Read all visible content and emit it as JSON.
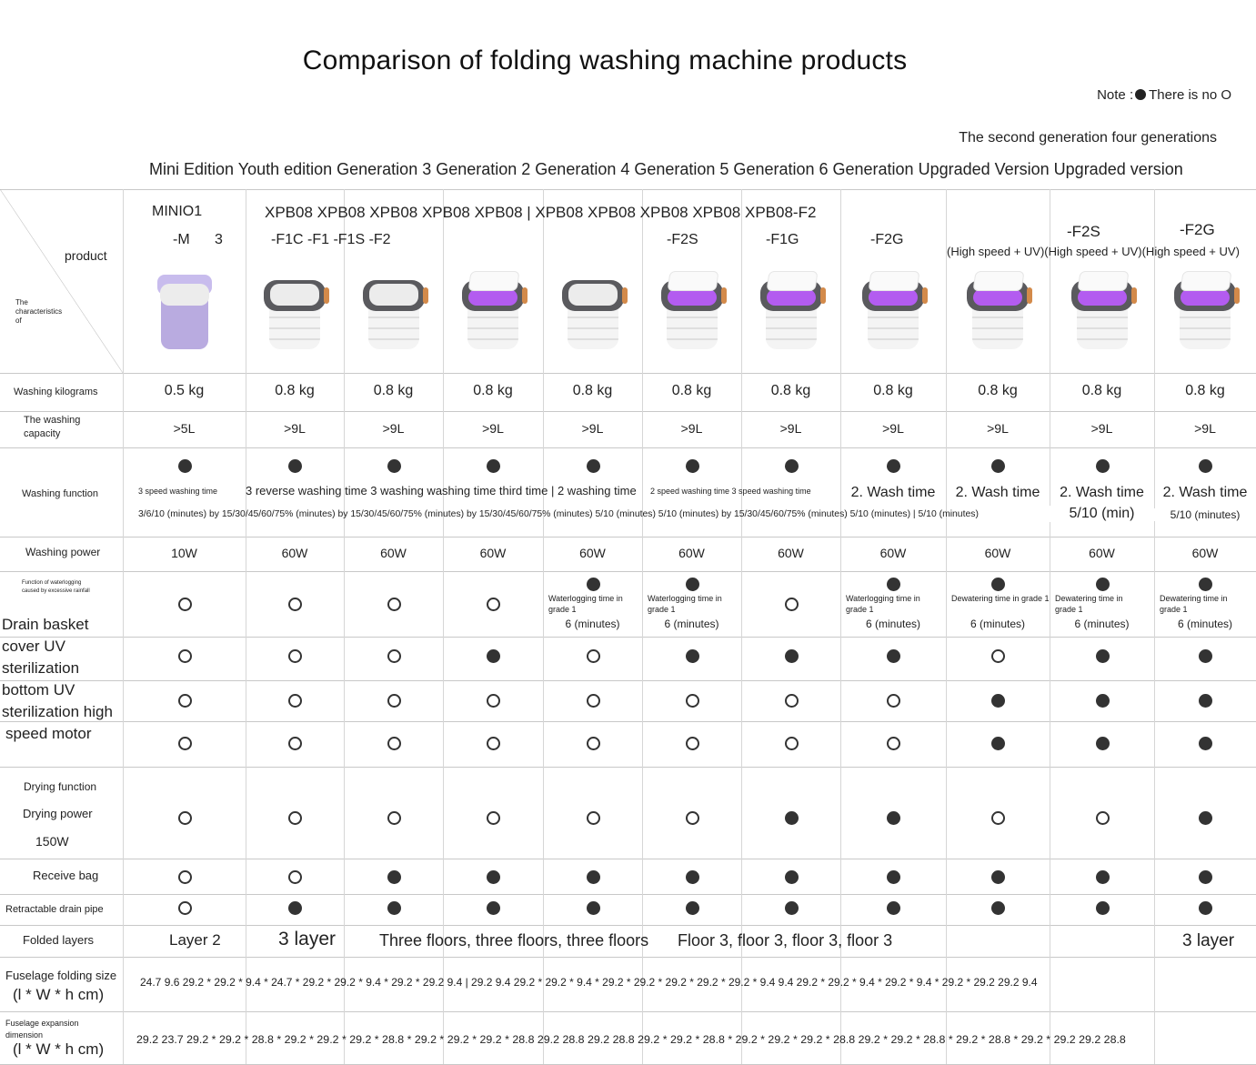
{
  "title": "Comparison of folding washing machine products",
  "note": {
    "prefix": "Note :",
    "text": "There is no O"
  },
  "generation_line_1": "The second generation four generations",
  "generation_line_2": "Mini Edition Youth edition Generation 3 Generation 2 Generation 4 Generation 5 Generation 6 Generation Upgraded Version Upgraded version",
  "header": {
    "product": "product",
    "characteristics": "The characteristics of",
    "model_line_a": "MINIO1",
    "model_m": "-M",
    "model_3": "3",
    "model_line_b": "XPB08 XPB08 XPB08 XPB08 XPB08 | XPB08 XPB08 XPB08 XPB08 XPB08-F2",
    "model_line_c": "-F1C -F1 -F1S -F2",
    "f2s": "-F2S",
    "f1g": "-F1G",
    "f2g": "-F2G",
    "f2s_b": "-F2S",
    "f2g_b": "-F2G",
    "high_speed": "(High speed + UV)(High speed + UV)(High speed + UV)"
  },
  "products": [
    {
      "color": "#b9abe0",
      "uv": false,
      "mini": true
    },
    {
      "uv": false
    },
    {
      "uv": false
    },
    {
      "uv": true
    },
    {
      "uv": false
    },
    {
      "uv": true
    },
    {
      "uv": true
    },
    {
      "uv": true
    },
    {
      "uv": true
    },
    {
      "uv": true
    },
    {
      "uv": true
    }
  ],
  "row_labels": {
    "kg": "Washing kilograms",
    "capacity": "The washing capacity",
    "washing": "Washing function",
    "power": "Washing power",
    "waterlog": "Function of waterlogging caused by excessive rainfall",
    "drain_basket": "Drain basket",
    "cover_uv_1": "cover UV",
    "cover_uv_2": "sterilization",
    "bottom_uv_1": "bottom UV",
    "bottom_uv_2": "sterilization high",
    "motor": "speed motor",
    "drying_1": "Drying function",
    "drying_2": "Drying power",
    "drying_3": "150W",
    "receive_bag": "Receive bag",
    "drain_pipe": "Retractable drain pipe",
    "layers": "Folded layers",
    "fold_size_1": "Fuselage folding size",
    "fold_size_2": "(l * W * h cm)",
    "expand_1": "Fuselage expansion dimension",
    "expand_2": "(l * W * h cm)"
  },
  "kg": [
    "0.5 kg",
    "0.8 kg",
    "0.8 kg",
    "0.8 kg",
    "0.8 kg",
    "0.8 kg",
    "0.8 kg",
    "0.8 kg",
    "0.8 kg",
    "0.8 kg",
    "0.8 kg"
  ],
  "capacity": [
    ">5L",
    ">9L",
    ">9L",
    ">9L",
    ">9L",
    ">9L",
    ">9L",
    ">9L",
    ">9L",
    ">9L",
    ">9L"
  ],
  "washing_text": {
    "a": "3 speed washing time",
    "b": "3 reverse washing time 3 washing washing time third time | 2 washing time",
    "c": "2 speed washing time 3 speed washing time",
    "wash_time": "2. Wash time",
    "line2": "3/6/10 (minutes) by 15/30/45/60/75% (minutes) by 15/30/45/60/75% (minutes) by 15/30/45/60/75% (minutes) 5/10 (minutes) 5/10 (minutes) by 15/30/45/60/75% (minutes) 5/10 (minutes) | 5/10 (minutes)",
    "min_10": "5/10 (min)",
    "min_11": "5/10 (minutes)"
  },
  "power": [
    "10W",
    "60W",
    "60W",
    "60W",
    "60W",
    "60W",
    "60W",
    "60W",
    "60W",
    "60W",
    "60W"
  ],
  "waterlog_notes": {
    "waterlogging": "Waterlogging time in grade 1",
    "dewatering": "Dewatering time in grade 1",
    "minutes": "6 (minutes)"
  },
  "features": {
    "washing": [
      1,
      1,
      1,
      1,
      1,
      1,
      1,
      1,
      1,
      1,
      1
    ],
    "waterlog": [
      0,
      0,
      0,
      0,
      1,
      1,
      0,
      1,
      1,
      1,
      1
    ],
    "cover_uv": [
      0,
      0,
      0,
      1,
      0,
      1,
      1,
      1,
      0,
      1,
      1
    ],
    "bottom_uv": [
      0,
      0,
      0,
      0,
      0,
      0,
      0,
      0,
      1,
      1,
      1
    ],
    "motor": [
      0,
      0,
      0,
      0,
      0,
      0,
      0,
      0,
      1,
      1,
      1
    ],
    "drying": [
      0,
      0,
      0,
      0,
      0,
      0,
      1,
      1,
      0,
      0,
      1
    ],
    "receive_bag": [
      0,
      0,
      1,
      1,
      1,
      1,
      1,
      1,
      1,
      1,
      1
    ],
    "drain_pipe": [
      0,
      1,
      1,
      1,
      1,
      1,
      1,
      1,
      1,
      1,
      1
    ]
  },
  "layers": {
    "a": "Layer 2",
    "b": "3 layer",
    "c": "Three floors, three floors, three floors",
    "d": "Floor 3, floor 3, floor 3, floor 3",
    "e": "3 layer"
  },
  "fold_size": "24.7 9.6 29.2 * 29.2 * 9.4 * 24.7 * 29.2 * 29.2 * 9.4 * 29.2 * 29.2 9.4 | 29.2 9.4 29.2 * 29.2 * 9.4 * 29.2 * 29.2 * 29.2 * 29.2 * 29.2 * 9.4 9.4 29.2 * 29.2 * 9.4 * 29.2 * 9.4 * 29.2 * 29.2 29.2 9.4",
  "expand_size": "29.2 23.7 29.2 * 29.2 * 28.8 * 29.2 * 29.2 * 29.2 * 28.8 * 29.2 * 29.2 * 29.2 * 28.8 29.2 28.8 29.2 28.8 29.2 * 29.2 * 28.8 * 29.2 * 29.2 * 29.2 * 28.8 29.2 * 29.2 * 28.8 * 29.2 * 28.8 * 29.2 * 29.2 29.2 28.8"
}
